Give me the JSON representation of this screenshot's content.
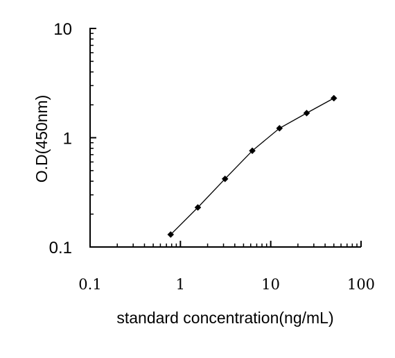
{
  "chart_data": {
    "type": "line",
    "title": "",
    "xlabel": "standard concentration(ng/mL)",
    "ylabel": "O.D(450nm)",
    "xscale": "log",
    "yscale": "log",
    "xlim": [
      0.1,
      100
    ],
    "ylim": [
      0.1,
      10
    ],
    "grid": false,
    "legend": "none",
    "x_ticks": [
      "0.1",
      "1",
      "10",
      "100"
    ],
    "y_ticks": [
      "0.1",
      "1",
      "10"
    ],
    "series": [
      {
        "x": [
          0.78,
          1.56,
          3.12,
          6.25,
          12.5,
          25,
          50
        ],
        "y": [
          0.13,
          0.23,
          0.42,
          0.76,
          1.22,
          1.68,
          2.3
        ],
        "color": "#000000",
        "marker": "diamond"
      }
    ]
  }
}
